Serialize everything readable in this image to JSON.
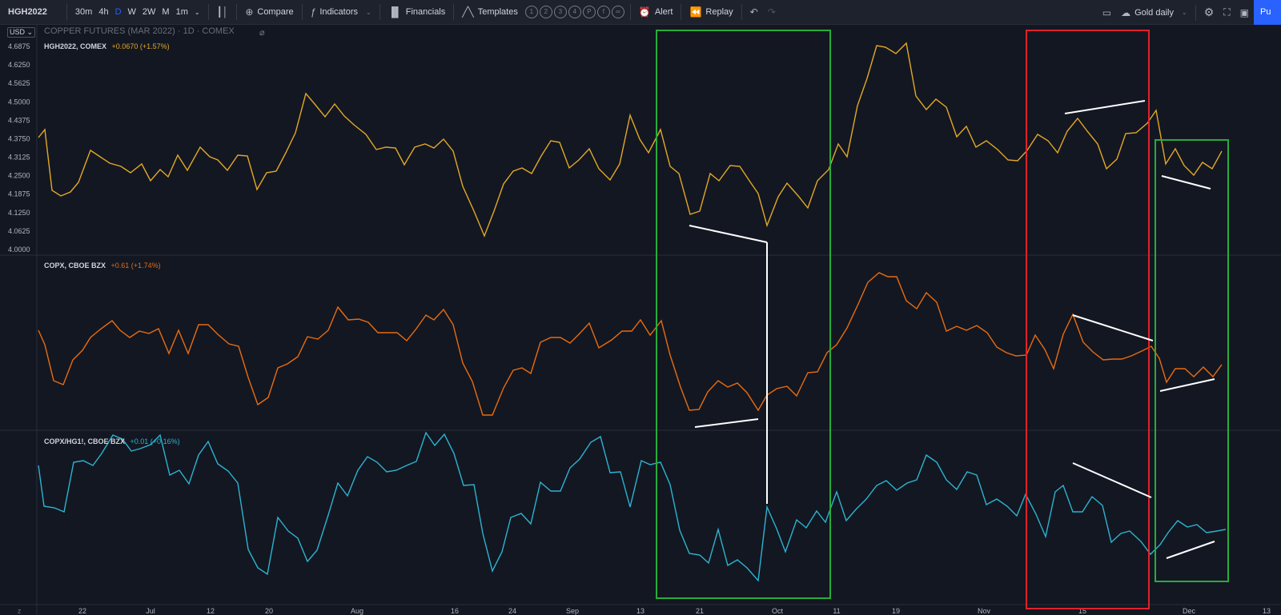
{
  "toolbar": {
    "symbol": "HGH2022",
    "intervals": [
      "30m",
      "4h",
      "D",
      "W",
      "2W",
      "M",
      "1m"
    ],
    "active_interval": "D",
    "compare": "Compare",
    "indicators": "Indicators",
    "financials": "Financials",
    "templates": "Templates",
    "template_slots": [
      "1",
      "2",
      "3",
      "4",
      "P",
      "f",
      "∞"
    ],
    "alert": "Alert",
    "replay": "Replay",
    "layout_name": "Gold daily",
    "publish": "Pu"
  },
  "icons": {
    "chart_type": "candle-icon",
    "compare": "plus-circle-icon",
    "indicators": "fx-icon",
    "financials": "bars-icon",
    "templates": "template-icon",
    "alert": "alarm-icon",
    "replay": "rewind-icon",
    "undo": "undo-icon",
    "redo": "redo-icon",
    "layout": "layout-icon",
    "cloud": "cloud-icon",
    "settings": "gear-icon",
    "fullscreen": "fullscreen-icon",
    "snapshot": "camera-icon",
    "hide": "eye-off-icon"
  },
  "chart": {
    "currency": "USD",
    "main_title": "COPPER FUTURES (MAR 2022) · 1D · COMEX",
    "price_axis": [
      "4.6875",
      "4.6250",
      "4.5625",
      "4.5000",
      "4.4375",
      "4.3750",
      "4.3125",
      "4.2500",
      "4.1875",
      "4.1250",
      "4.0625",
      "4.0000"
    ],
    "time_axis": [
      "22",
      "Jul",
      "12",
      "20",
      "Aug",
      "16",
      "24",
      "Sep",
      "13",
      "21",
      "Oct",
      "11",
      "19",
      "Nov",
      "15",
      "Dec",
      "13"
    ],
    "time_axis_lead": "Z",
    "panes": [
      {
        "symbol": "HGH2022, COMEX",
        "change": "+0.0670 (+1.57%)",
        "color": "#e3a826"
      },
      {
        "symbol": "COPX, CBOE BZX",
        "change": "+0.61 (+1.74%)",
        "color": "#e86c10"
      },
      {
        "symbol": "COPX/HG1!, CBOE BZX",
        "change": "+0.01 (+0.16%)",
        "color": "#2cb4d0"
      }
    ],
    "box_colors": {
      "green": "#27ad3b",
      "red": "#e0222a",
      "annot": "#ffffff"
    }
  }
}
